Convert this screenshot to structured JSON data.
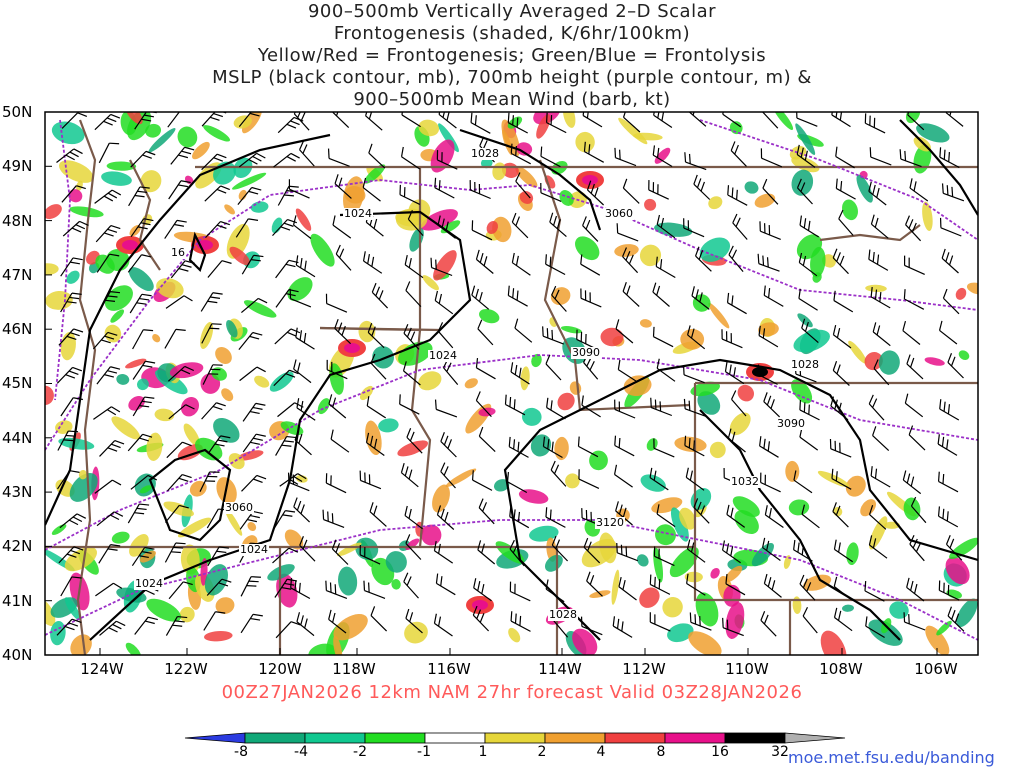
{
  "title": {
    "lines": [
      "900–500mb Vertically Averaged 2–D Scalar",
      "Frontogenesis (shaded, K/6hr/100km)",
      "Yellow/Red = Frontogenesis;  Green/Blue = Frontolysis",
      "MSLP (black contour, mb), 700mb height (purple contour, m) &",
      "900–500mb Mean Wind (barb, kt)"
    ]
  },
  "axes": {
    "lat_labels": [
      "50N",
      "49N",
      "48N",
      "47N",
      "46N",
      "45N",
      "44N",
      "43N",
      "42N",
      "41N",
      "40N"
    ],
    "lon_labels": [
      "124W",
      "122W",
      "120W",
      "118W",
      "116W",
      "114W",
      "112W",
      "110W",
      "108W",
      "106W"
    ]
  },
  "contour_labels": {
    "mslp": [
      "1028",
      "1024",
      "1024",
      "1028",
      "1032",
      "1024",
      "1024",
      "1028",
      "16"
    ],
    "height": [
      "3060",
      "3090",
      "3090",
      "3060",
      "3120"
    ]
  },
  "run_info": "00Z27JAN2026 12km NAM 27hr forecast Valid 03Z28JAN2026",
  "colorbar": {
    "labels": [
      "-8",
      "-4",
      "-2",
      "-1",
      "1",
      "2",
      "4",
      "8",
      "16",
      "32"
    ],
    "colors": [
      "#2b3be0",
      "#10a878",
      "#10c890",
      "#22dd22",
      "#ffffff",
      "#e6d63a",
      "#f0a030",
      "#f04040",
      "#e8108a",
      "#000000",
      "#b0b0b0"
    ]
  },
  "credit": "moe.met.fsu.edu/banding",
  "map_colors": {
    "state_borders": "#7a5a4a",
    "mslp_contours": "#000000",
    "height_contours": "#9b30c8",
    "barbs": "#000000"
  }
}
